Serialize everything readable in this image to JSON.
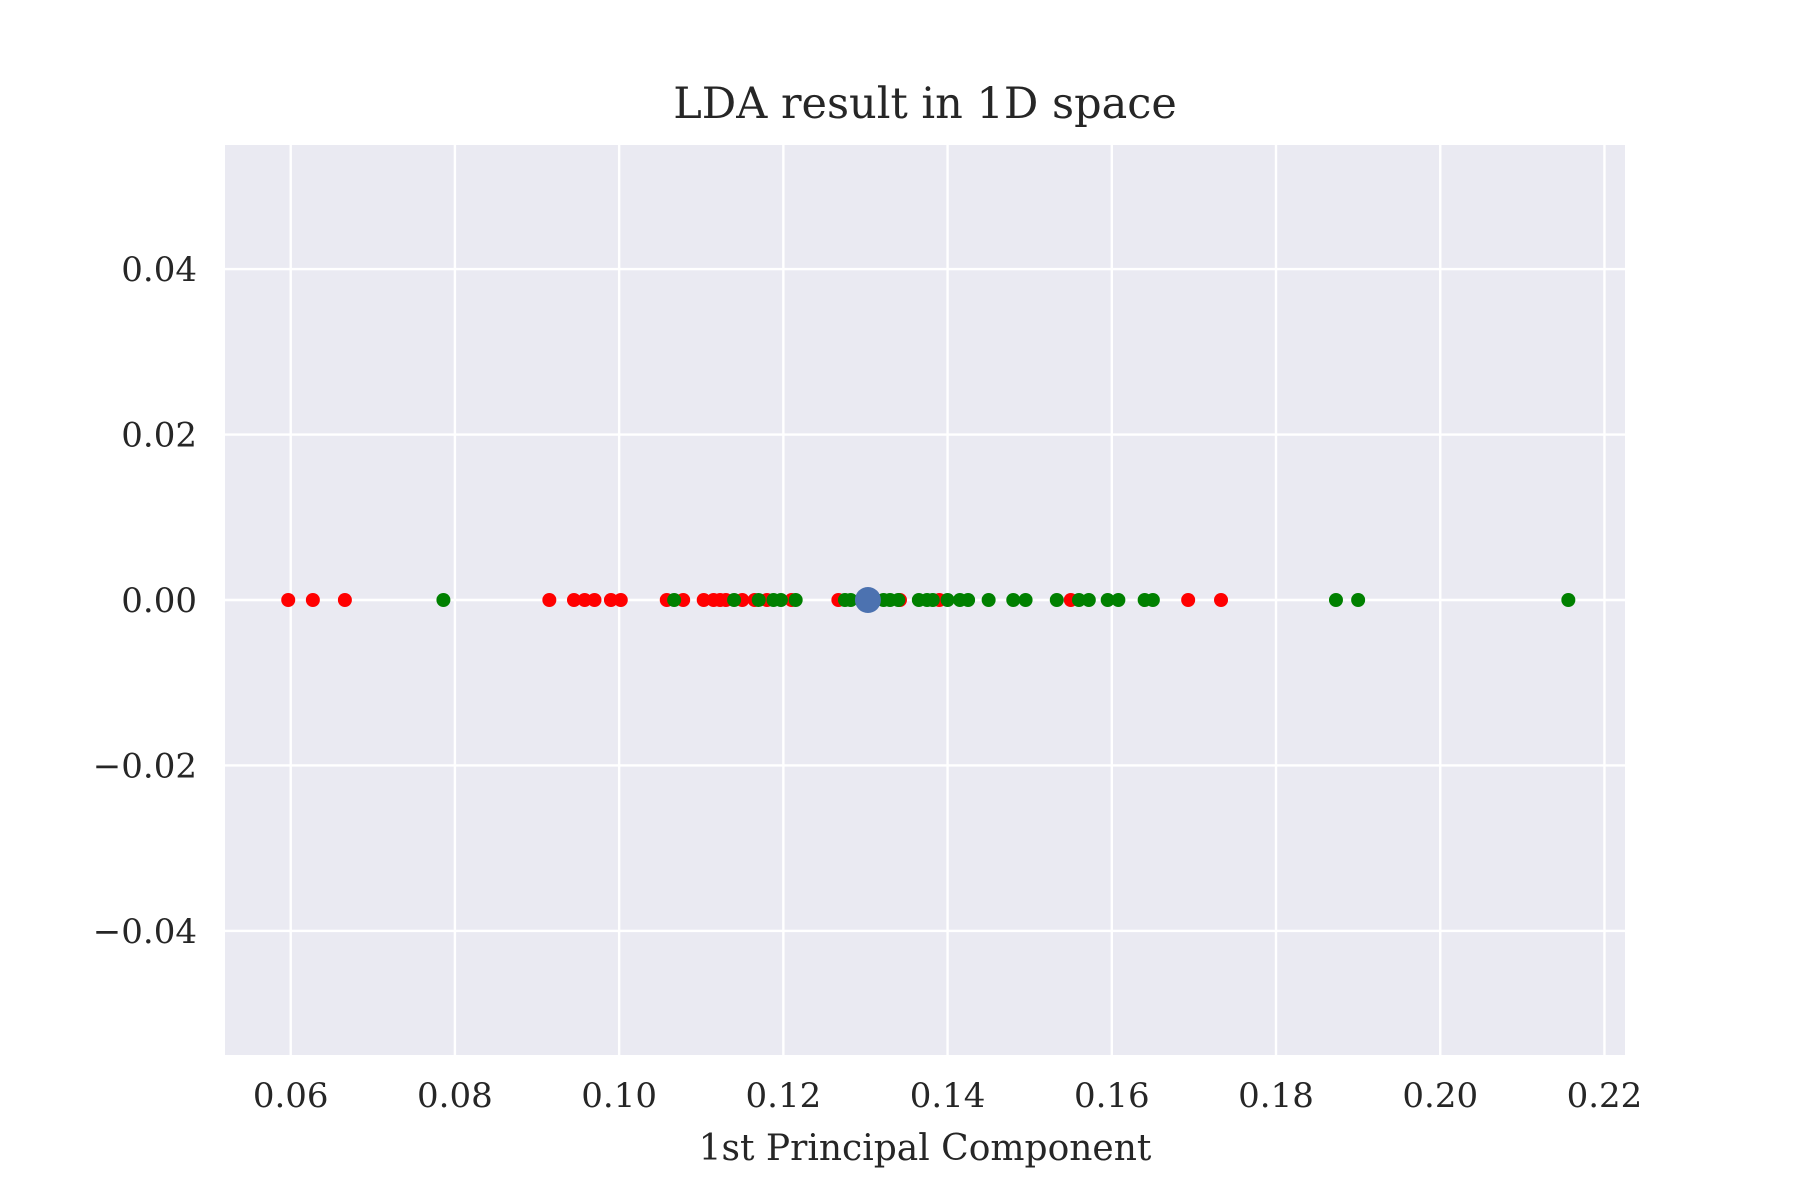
{
  "chart_data": {
    "type": "scatter",
    "title": "LDA result in 1D space",
    "xlabel": "1st Principal Component",
    "ylabel": "",
    "xlim": [
      0.052,
      0.2225
    ],
    "ylim": [
      -0.055,
      0.055
    ],
    "x_ticks": [
      0.06,
      0.08,
      0.1,
      0.12,
      0.14,
      0.16,
      0.18,
      0.2,
      0.22
    ],
    "x_tick_labels": [
      "0.06",
      "0.08",
      "0.10",
      "0.12",
      "0.14",
      "0.16",
      "0.18",
      "0.20",
      "0.22"
    ],
    "y_ticks": [
      0.04,
      0.02,
      0.0,
      -0.02,
      -0.04
    ],
    "y_tick_labels": [
      "0.04",
      "0.02",
      "0.00",
      "−0.02",
      "−0.04"
    ],
    "grid": true,
    "background_color": "#eaeaf2",
    "grid_color": "#ffffff",
    "series": [
      {
        "color": "#ff0000",
        "x": [
          0.0597,
          0.0627,
          0.0666,
          0.0915,
          0.0945,
          0.0958,
          0.097,
          0.099,
          0.1002,
          0.1058,
          0.1078,
          0.1103,
          0.1115,
          0.1123,
          0.113,
          0.115,
          0.1165,
          0.118,
          0.121,
          0.1267,
          0.1342,
          0.139,
          0.155,
          0.1693,
          0.1733
        ],
        "y": [
          0,
          0,
          0,
          0,
          0,
          0,
          0,
          0,
          0,
          0,
          0,
          0,
          0,
          0,
          0,
          0,
          0,
          0,
          0,
          0,
          0,
          0,
          0,
          0,
          0
        ]
      },
      {
        "color": "#008000",
        "x": [
          0.0786,
          0.1067,
          0.114,
          0.117,
          0.1188,
          0.1197,
          0.1215,
          0.1275,
          0.1282,
          0.1322,
          0.133,
          0.134,
          0.1365,
          0.1375,
          0.1382,
          0.14,
          0.1415,
          0.1425,
          0.145,
          0.148,
          0.1495,
          0.1533,
          0.156,
          0.1572,
          0.1595,
          0.1608,
          0.164,
          0.165,
          0.1873,
          0.19,
          0.2156
        ],
        "y": [
          0,
          0,
          0,
          0,
          0,
          0,
          0,
          0,
          0,
          0,
          0,
          0,
          0,
          0,
          0,
          0,
          0,
          0,
          0,
          0,
          0,
          0,
          0,
          0,
          0,
          0,
          0,
          0,
          0,
          0,
          0
        ]
      },
      {
        "color": "#4c72b0",
        "x": [
          0.1303
        ],
        "y": [
          0
        ]
      }
    ]
  }
}
